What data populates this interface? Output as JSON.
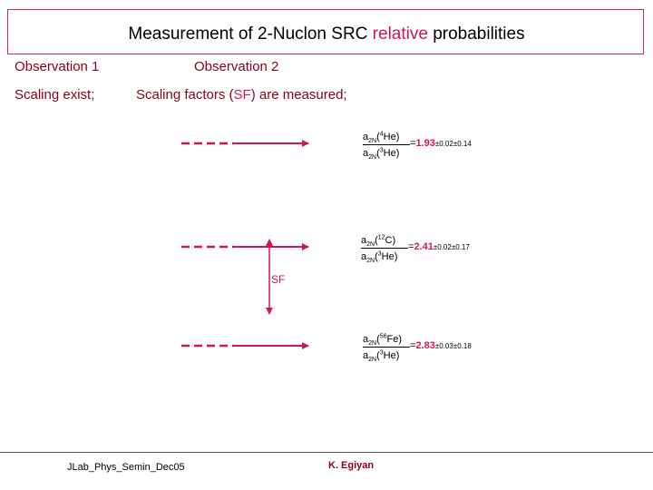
{
  "title": {
    "prefix": "Measurement of 2-Nuclon SRC ",
    "highlight": "relative",
    "suffix": " probabilities"
  },
  "observation1": {
    "label": "Observation 1",
    "text": "Scaling exist;"
  },
  "observation2": {
    "label": "Observation 2",
    "text_prefix": "Scaling factors (",
    "text_highlight": "SF",
    "text_suffix": ") are measured;"
  },
  "ratios": [
    {
      "num_prefix": "a",
      "num_sub": "2N",
      "num_open": "(",
      "num_sup": "4",
      "num_elem": "He)",
      "den_prefix": "a",
      "den_sub": "2N",
      "den_open": "(",
      "den_sup": "3",
      "den_elem": "He)",
      "value": "1.93",
      "stat": "±0.02",
      "sys": "±0.14"
    },
    {
      "num_prefix": "a",
      "num_sub": "2N",
      "num_open": "(",
      "num_sup": "12",
      "num_elem": "C)",
      "den_prefix": "a",
      "den_sub": "2N",
      "den_open": "(",
      "den_sup": "3",
      "den_elem": "He)",
      "value": "2.41",
      "stat": "±0.02",
      "sys": "±0.17"
    },
    {
      "num_prefix": "a",
      "num_sub": "2N",
      "num_open": "(",
      "num_sup": "56",
      "num_elem": "Fe)",
      "den_prefix": "a",
      "den_sub": "2N",
      "den_open": "(",
      "den_sup": "3",
      "den_elem": "He)",
      "value": "2.83",
      "stat": "±0.03",
      "sys": "±0.18"
    }
  ],
  "equals": "=",
  "sf_label": "SF",
  "footer": {
    "left": "JLab_Phys_Semin_Dec05",
    "right": "K. Egiyan"
  },
  "colors": {
    "accent": "#d4145a",
    "observation": "#8b0018",
    "border": "#c0306a"
  }
}
